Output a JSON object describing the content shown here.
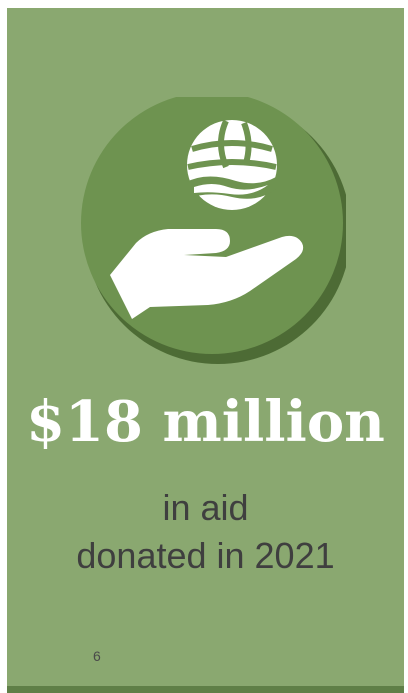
{
  "infographic": {
    "amount": "$18 million",
    "line_1": "in aid",
    "line_2": "donated in 2021",
    "page_number": "6",
    "icon": "hand-holding-globe-icon"
  },
  "colors": {
    "panel": "#8aa870",
    "circle": "#6e9350",
    "circle_shadow": "#4d6b35",
    "icon": "#ffffff",
    "amount_text": "#ffffff",
    "body_text": "#3f3f3f"
  }
}
